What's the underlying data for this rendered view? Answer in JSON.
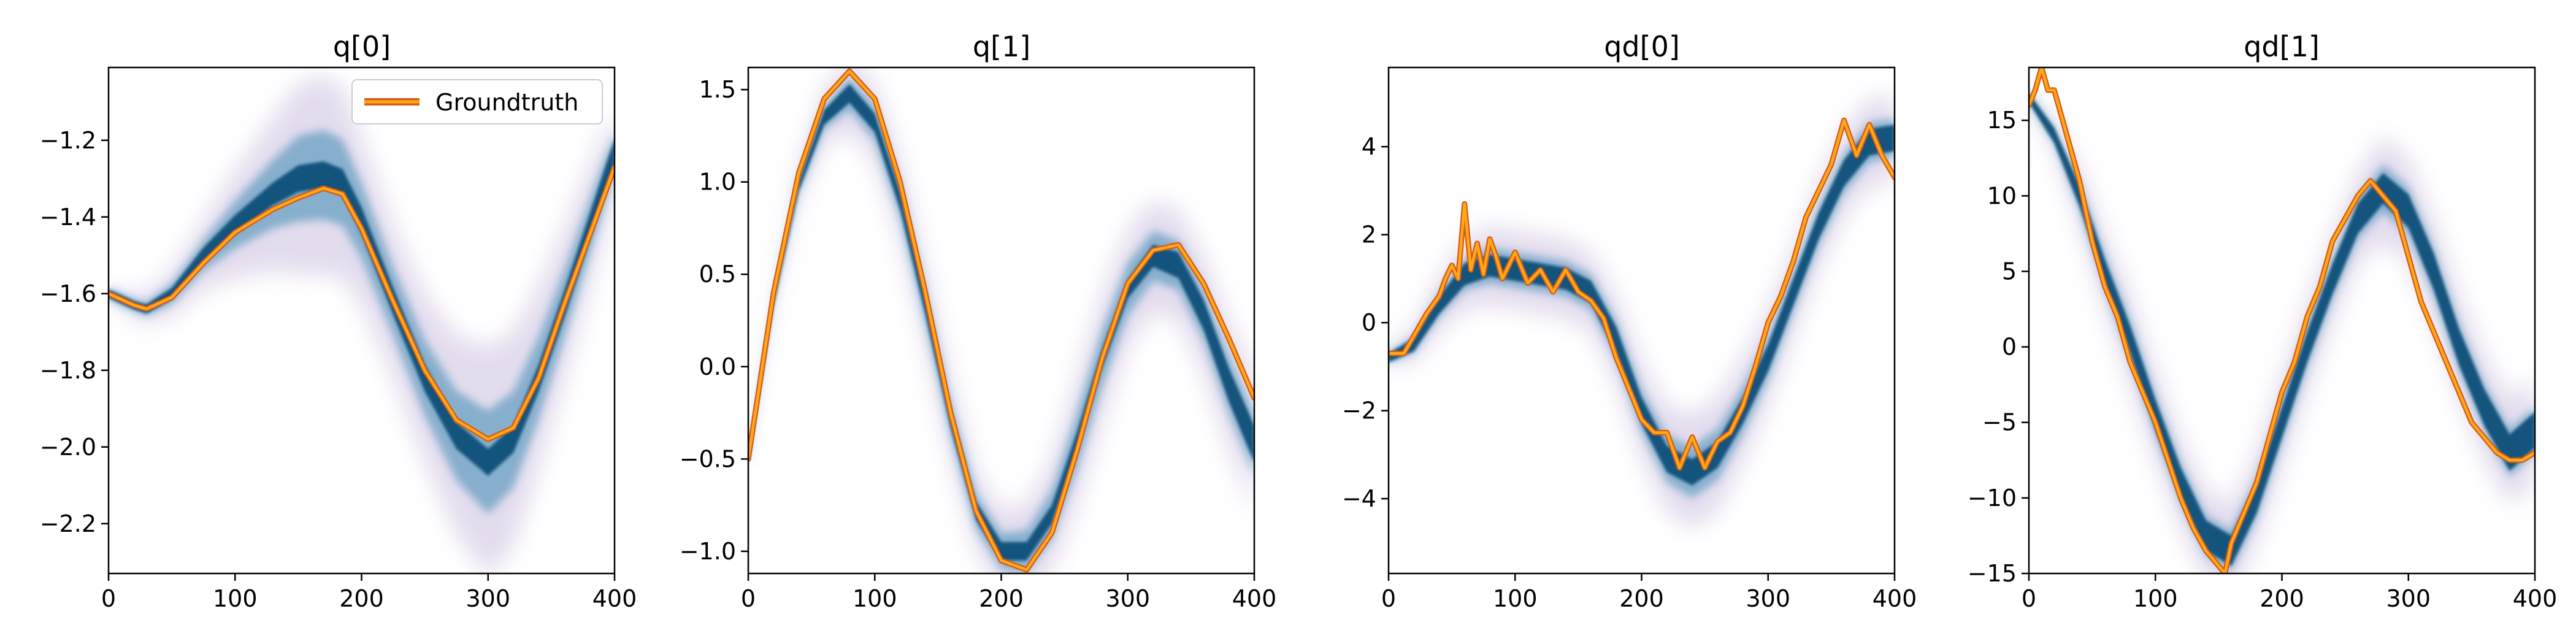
{
  "figure": {
    "legend_label": "Groundtruth"
  },
  "colors": {
    "groundtruth_edge": "#d95a14",
    "groundtruth_fill": "#ffa81a",
    "band_core": "#0b4f78",
    "band_mid": "#3d89b2",
    "band_halo": "#d7cde6"
  },
  "chart_data": [
    {
      "type": "line",
      "title": "q[0]",
      "xlim": [
        0,
        400
      ],
      "ylim": [
        -2.33,
        -1.01
      ],
      "xticks": [
        0,
        100,
        200,
        300,
        400
      ],
      "yticks": [
        -2.2,
        -2.0,
        -1.8,
        -1.6,
        -1.4,
        -1.2
      ],
      "ytick_labels": [
        "−2.2",
        "−2.0",
        "−1.8",
        "−1.6",
        "−1.4",
        "−1.2"
      ],
      "legend": {
        "label": "Groundtruth",
        "placement": "top-right"
      },
      "series": [
        {
          "name": "Groundtruth",
          "x": [
            0,
            20,
            30,
            50,
            75,
            100,
            130,
            150,
            170,
            185,
            200,
            225,
            250,
            275,
            300,
            320,
            340,
            360,
            380,
            400
          ],
          "y": [
            -1.6,
            -1.63,
            -1.64,
            -1.61,
            -1.52,
            -1.44,
            -1.38,
            -1.35,
            -1.325,
            -1.34,
            -1.43,
            -1.62,
            -1.8,
            -1.93,
            -1.98,
            -1.95,
            -1.82,
            -1.63,
            -1.45,
            -1.27
          ]
        }
      ],
      "band": {
        "x": [
          0,
          20,
          30,
          50,
          75,
          100,
          130,
          150,
          170,
          185,
          200,
          225,
          250,
          275,
          300,
          320,
          340,
          360,
          380,
          400
        ],
        "center": [
          -1.6,
          -1.63,
          -1.64,
          -1.6,
          -1.5,
          -1.42,
          -1.34,
          -1.3,
          -1.29,
          -1.31,
          -1.41,
          -1.62,
          -1.82,
          -1.97,
          -2.04,
          -1.98,
          -1.82,
          -1.63,
          -1.43,
          -1.23
        ],
        "core_halfwidth": [
          0.005,
          0.01,
          0.012,
          0.015,
          0.02,
          0.025,
          0.03,
          0.035,
          0.035,
          0.035,
          0.035,
          0.035,
          0.035,
          0.035,
          0.035,
          0.035,
          0.035,
          0.035,
          0.035,
          0.035
        ],
        "halo_halfwidth": [
          0.01,
          0.03,
          0.04,
          0.06,
          0.09,
          0.14,
          0.2,
          0.25,
          0.26,
          0.25,
          0.22,
          0.2,
          0.22,
          0.26,
          0.3,
          0.28,
          0.24,
          0.2,
          0.16,
          0.12
        ]
      }
    },
    {
      "type": "line",
      "title": "q[1]",
      "xlim": [
        0,
        400
      ],
      "ylim": [
        -1.12,
        1.62
      ],
      "xticks": [
        0,
        100,
        200,
        300,
        400
      ],
      "yticks": [
        -1.0,
        -0.5,
        0.0,
        0.5,
        1.0,
        1.5
      ],
      "ytick_labels": [
        "−1.0",
        "−0.5",
        "0.0",
        "0.5",
        "1.0",
        "1.5"
      ],
      "series": [
        {
          "name": "Groundtruth",
          "x": [
            0,
            20,
            40,
            60,
            80,
            100,
            120,
            140,
            160,
            180,
            200,
            220,
            240,
            260,
            280,
            300,
            320,
            340,
            360,
            380,
            400
          ],
          "y": [
            -0.5,
            0.4,
            1.05,
            1.45,
            1.6,
            1.45,
            1.0,
            0.4,
            -0.25,
            -0.78,
            -1.05,
            -1.1,
            -0.9,
            -0.45,
            0.05,
            0.45,
            0.63,
            0.66,
            0.45,
            0.15,
            -0.17
          ]
        }
      ],
      "band": {
        "x": [
          0,
          20,
          40,
          60,
          80,
          100,
          120,
          140,
          160,
          180,
          200,
          220,
          240,
          260,
          280,
          300,
          320,
          340,
          360,
          380,
          400
        ],
        "center": [
          -0.5,
          0.35,
          0.98,
          1.35,
          1.48,
          1.32,
          0.9,
          0.33,
          -0.28,
          -0.78,
          -1.0,
          -1.0,
          -0.8,
          -0.4,
          0.05,
          0.42,
          0.6,
          0.55,
          0.28,
          -0.1,
          -0.42
        ],
        "core_halfwidth": [
          0.01,
          0.02,
          0.03,
          0.04,
          0.05,
          0.05,
          0.05,
          0.05,
          0.05,
          0.05,
          0.05,
          0.05,
          0.05,
          0.05,
          0.05,
          0.05,
          0.06,
          0.07,
          0.08,
          0.09,
          0.1
        ],
        "halo_halfwidth": [
          0.02,
          0.05,
          0.1,
          0.15,
          0.2,
          0.22,
          0.22,
          0.22,
          0.22,
          0.22,
          0.22,
          0.25,
          0.3,
          0.35,
          0.35,
          0.32,
          0.3,
          0.3,
          0.32,
          0.35,
          0.38
        ]
      }
    },
    {
      "type": "line",
      "title": "qd[0]",
      "xlim": [
        0,
        400
      ],
      "ylim": [
        -5.7,
        5.8
      ],
      "xticks": [
        0,
        100,
        200,
        300,
        400
      ],
      "yticks": [
        -4,
        -2,
        0,
        2,
        4
      ],
      "ytick_labels": [
        "−4",
        "−2",
        "0",
        "2",
        "4"
      ],
      "series": [
        {
          "name": "Groundtruth",
          "x": [
            0,
            12,
            20,
            30,
            40,
            45,
            50,
            55,
            60,
            65,
            70,
            75,
            80,
            85,
            90,
            100,
            110,
            120,
            130,
            140,
            150,
            160,
            170,
            180,
            190,
            200,
            210,
            220,
            230,
            240,
            250,
            260,
            270,
            280,
            290,
            300,
            310,
            320,
            330,
            340,
            350,
            360,
            370,
            380,
            390,
            400
          ],
          "y": [
            -0.7,
            -0.7,
            -0.3,
            0.2,
            0.6,
            1.0,
            1.3,
            1.0,
            2.7,
            1.2,
            1.8,
            1.1,
            1.9,
            1.5,
            1.0,
            1.6,
            0.9,
            1.2,
            0.7,
            1.2,
            0.7,
            0.5,
            0.1,
            -0.8,
            -1.5,
            -2.2,
            -2.5,
            -2.5,
            -3.3,
            -2.6,
            -3.3,
            -2.7,
            -2.5,
            -1.9,
            -1.0,
            0.0,
            0.6,
            1.4,
            2.4,
            3.0,
            3.6,
            4.6,
            3.8,
            4.5,
            3.8,
            3.3
          ]
        }
      ],
      "band": {
        "x": [
          0,
          20,
          40,
          60,
          80,
          100,
          120,
          140,
          160,
          180,
          200,
          220,
          240,
          260,
          280,
          300,
          320,
          340,
          360,
          380,
          400
        ],
        "center": [
          -0.8,
          -0.5,
          0.4,
          1.1,
          1.3,
          1.2,
          1.1,
          1.0,
          0.7,
          -0.4,
          -2.0,
          -3.1,
          -3.4,
          -3.0,
          -2.0,
          -0.8,
          0.7,
          2.2,
          3.4,
          4.1,
          4.2
        ],
        "core_halfwidth": [
          0.1,
          0.15,
          0.2,
          0.25,
          0.25,
          0.25,
          0.25,
          0.25,
          0.25,
          0.3,
          0.3,
          0.3,
          0.3,
          0.3,
          0.3,
          0.3,
          0.3,
          0.3,
          0.3,
          0.3,
          0.3
        ],
        "halo_halfwidth": [
          0.2,
          0.4,
          0.6,
          0.8,
          0.9,
          0.9,
          0.9,
          0.9,
          0.9,
          1.0,
          1.1,
          1.2,
          1.3,
          1.3,
          1.2,
          1.1,
          1.0,
          1.0,
          1.0,
          1.0,
          1.0
        ]
      }
    },
    {
      "type": "line",
      "title": "qd[1]",
      "xlim": [
        0,
        400
      ],
      "ylim": [
        -15,
        18.5
      ],
      "xticks": [
        0,
        100,
        200,
        300,
        400
      ],
      "yticks": [
        -15,
        -10,
        -5,
        0,
        5,
        10,
        15
      ],
      "ytick_labels": [
        "−15",
        "−10",
        "−5",
        "0",
        "5",
        "10",
        "15"
      ],
      "series": [
        {
          "name": "Groundtruth",
          "x": [
            0,
            5,
            10,
            15,
            20,
            30,
            40,
            50,
            60,
            70,
            80,
            90,
            100,
            110,
            120,
            130,
            140,
            150,
            155,
            160,
            170,
            180,
            190,
            200,
            210,
            220,
            230,
            240,
            250,
            260,
            270,
            280,
            290,
            300,
            310,
            320,
            330,
            340,
            350,
            360,
            370,
            380,
            390,
            400
          ],
          "y": [
            16,
            17,
            18.5,
            17,
            17,
            14,
            11,
            7,
            4,
            2,
            -1,
            -3,
            -5,
            -7.5,
            -10,
            -12,
            -13.5,
            -14.5,
            -15,
            -13,
            -11,
            -9,
            -6,
            -3,
            -1,
            2,
            4,
            7,
            8.5,
            10,
            11,
            10,
            9,
            6,
            3,
            1,
            -1,
            -3,
            -5,
            -6,
            -7,
            -7.5,
            -7.5,
            -7
          ]
        }
      ],
      "band": {
        "x": [
          0,
          20,
          40,
          60,
          80,
          100,
          120,
          140,
          160,
          180,
          200,
          220,
          240,
          260,
          280,
          300,
          320,
          340,
          360,
          380,
          400
        ],
        "center": [
          16.5,
          14,
          10,
          5,
          0.5,
          -4.5,
          -9,
          -12.5,
          -13.5,
          -10,
          -5,
          0,
          4.5,
          8.5,
          10.5,
          9,
          5,
          0,
          -4,
          -7,
          -5.5
        ],
        "core_halfwidth": [
          0.3,
          0.5,
          0.7,
          0.8,
          0.9,
          1,
          1,
          1,
          1,
          1,
          1,
          1,
          1,
          1,
          1,
          1.1,
          1.2,
          1.2,
          1.2,
          1.2,
          1.2
        ],
        "halo_halfwidth": [
          0.5,
          1,
          2,
          2.5,
          3,
          3,
          3,
          3,
          3,
          3,
          3,
          3,
          3,
          3,
          3.5,
          3.5,
          3.5,
          3.5,
          3.5,
          3.5,
          3.5
        ]
      }
    }
  ]
}
